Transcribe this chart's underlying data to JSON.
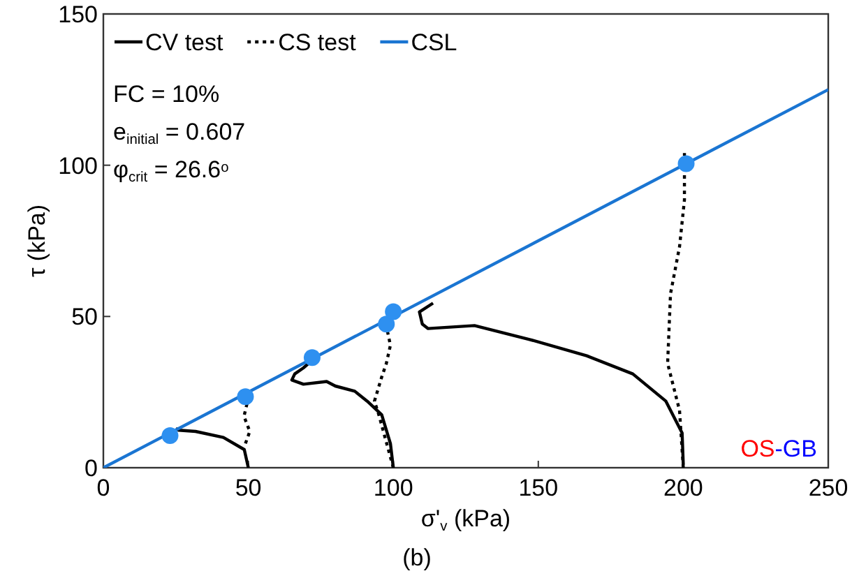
{
  "chart_data": {
    "type": "line",
    "xlabel": "σ'$_{v}$ (kPa)",
    "ylabel": "τ (kPa)",
    "xlim": [
      0,
      250
    ],
    "xticks": [
      0,
      50,
      100,
      150,
      200,
      250
    ],
    "ylim": [
      0,
      150
    ],
    "yticks": [
      0,
      50,
      100,
      150
    ],
    "grid": false,
    "legend": "top left",
    "series": [
      {
        "name": "CV test",
        "color": "#000000",
        "line_style": "solid",
        "x": [
          50,
          48.6,
          41.4,
          31.8,
          26,
          25
        ],
        "values": [
          0,
          6,
          10,
          12,
          12.4,
          13
        ]
      },
      {
        "color": "#000000",
        "line_style": "solid",
        "x": [
          100,
          99,
          96,
          91,
          86.7,
          80,
          77,
          69,
          65,
          66,
          69,
          72
        ],
        "values": [
          0,
          8,
          17.5,
          22,
          25.3,
          27,
          28.5,
          27.6,
          29,
          31,
          33,
          35.5
        ]
      },
      {
        "color": "#000000",
        "line_style": "solid",
        "x": [
          200,
          199.6,
          194,
          182.6,
          166.7,
          147,
          128,
          112,
          110,
          109,
          113.7
        ],
        "values": [
          1,
          11.5,
          22,
          31,
          37,
          42.4,
          47,
          46,
          47.5,
          51.5,
          54.4
        ]
      },
      {
        "name": "CS test",
        "color": "#000000",
        "line_style": "dotted",
        "x": [
          49,
          50.5,
          48.5,
          50
        ],
        "values": [
          8,
          12,
          17,
          23
        ]
      },
      {
        "color": "#000000",
        "line_style": "dotted",
        "x": [
          100,
          95,
          93.5,
          96,
          97.6,
          99,
          98,
          97
        ],
        "values": [
          0,
          17.5,
          22,
          30,
          34.5,
          40.5,
          45,
          48
        ]
      },
      {
        "color": "#000000",
        "line_style": "dotted",
        "x": [
          200,
          198.7,
          194.6,
          195.6,
          198.7,
          200.4,
          200.4
        ],
        "values": [
          0,
          19,
          34.5,
          57.5,
          73,
          88.5,
          104
        ]
      },
      {
        "name": "CSL",
        "color": "#1a75d2",
        "line_style": "solid",
        "x": [
          0,
          250
        ],
        "values": [
          0,
          125
        ]
      },
      {
        "type": "scatter",
        "color": "#2e90f0",
        "marker": "circle",
        "x": [
          23,
          49,
          72,
          97.6,
          100,
          201
        ],
        "values": [
          10.6,
          23.5,
          36.4,
          47.5,
          51.6,
          100.5
        ]
      }
    ],
    "annotations": [
      "FC = 10%",
      "e$_{initial}$ = 0.607",
      "φ$_{crit}$ = 26.6$^{o}$",
      "OS-GB",
      "(b)"
    ]
  }
}
